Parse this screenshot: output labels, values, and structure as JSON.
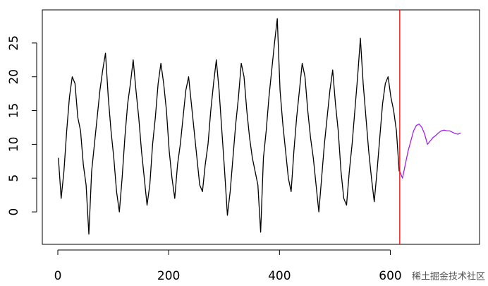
{
  "chart_data": {
    "type": "line",
    "xlim": [
      -28,
      761
    ],
    "ylim": [
      -4.8,
      29.9
    ],
    "xticks": [
      0,
      200,
      400,
      600
    ],
    "yticks": [
      0,
      5,
      10,
      15,
      20,
      25
    ],
    "series": [
      {
        "color": "#000000",
        "x": [
          1,
          6,
          11,
          16,
          21,
          26,
          31,
          36,
          41,
          46,
          51,
          56,
          61,
          66,
          71,
          76,
          81,
          86,
          91,
          96,
          101,
          106,
          111,
          116,
          121,
          126,
          131,
          136,
          141,
          146,
          151,
          156,
          161,
          166,
          171,
          176,
          181,
          186,
          191,
          196,
          201,
          206,
          211,
          216,
          221,
          226,
          231,
          236,
          241,
          246,
          251,
          256,
          261,
          266,
          271,
          276,
          281,
          286,
          291,
          296,
          301,
          306,
          311,
          316,
          321,
          326,
          331,
          336,
          341,
          346,
          351,
          356,
          361,
          366,
          371,
          376,
          381,
          386,
          391,
          396,
          401,
          406,
          411,
          416,
          421,
          426,
          431,
          436,
          441,
          446,
          451,
          456,
          461,
          466,
          471,
          476,
          481,
          486,
          491,
          496,
          501,
          506,
          511,
          516,
          521,
          526,
          531,
          536,
          541,
          546,
          551,
          556,
          561,
          566,
          571,
          576,
          581,
          586,
          591,
          596,
          601,
          606,
          611,
          616
        ],
        "values": [
          8,
          2,
          6,
          12,
          17,
          20,
          19,
          14,
          12,
          7,
          4,
          -3.3,
          6,
          10,
          14,
          18,
          21,
          23.5,
          17,
          12,
          8,
          3,
          0,
          5,
          11,
          16,
          19,
          22.5,
          18,
          14,
          9,
          5,
          1,
          4,
          10,
          14,
          19,
          22,
          19,
          15,
          9,
          5,
          2,
          7,
          10,
          14,
          18,
          20,
          16,
          12,
          8,
          4,
          3,
          7,
          10,
          15,
          19,
          22.5,
          18,
          12,
          6,
          -0.5,
          3,
          8,
          13,
          17,
          22,
          20,
          15,
          11,
          8,
          6,
          4,
          -3,
          8,
          12,
          17,
          21,
          25,
          28.6,
          18,
          13,
          9,
          5,
          3,
          9,
          14,
          18,
          22,
          20,
          15,
          11,
          8,
          4,
          0,
          5,
          10,
          14,
          18,
          21,
          16,
          12,
          6,
          2,
          1,
          6,
          10,
          15,
          20,
          25.7,
          19,
          14,
          9,
          5,
          1.5,
          6,
          11,
          16,
          19,
          20,
          17,
          15,
          12,
          6
        ]
      },
      {
        "color": "#a020f0",
        "x": [
          617,
          622,
          627,
          632,
          637,
          642,
          647,
          652,
          657,
          662,
          667,
          672,
          677,
          682,
          687,
          692,
          697,
          702,
          707,
          712,
          717,
          722,
          727
        ],
        "values": [
          6,
          5,
          7,
          9,
          10.5,
          12,
          12.8,
          13,
          12.5,
          11.5,
          10,
          10.5,
          11,
          11.3,
          11.7,
          12,
          12.1,
          12,
          12,
          11.8,
          11.6,
          11.5,
          11.7
        ]
      }
    ],
    "vline": {
      "x": 617,
      "color": "#ff0000"
    },
    "watermark": "稀土掘金技术社区"
  }
}
